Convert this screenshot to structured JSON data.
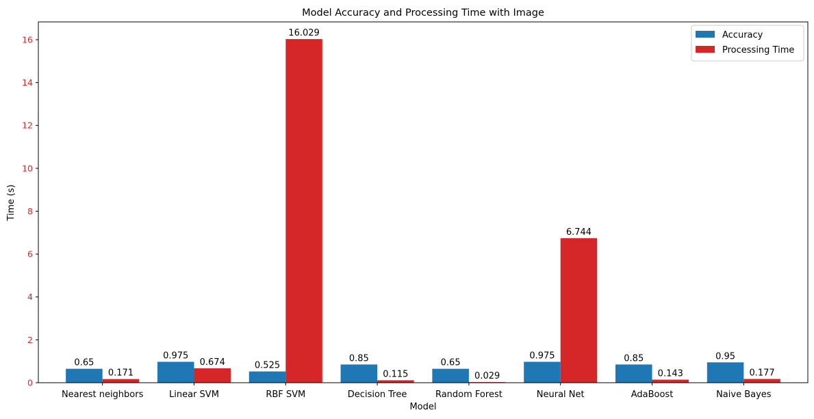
{
  "chart_data": {
    "type": "bar",
    "title": "Model Accuracy and Processing Time with Image",
    "xlabel": "Model",
    "ylabel": "Time (s)",
    "ylim": [
      0,
      16.83
    ],
    "yticks": [
      0,
      2,
      4,
      6,
      8,
      10,
      12,
      14,
      16
    ],
    "grid": false,
    "legend_position": "top-right",
    "categories": [
      "Nearest neighbors",
      "Linear SVM",
      "RBF SVM",
      "Decision Tree",
      "Random Forest",
      "Neural Net",
      "AdaBoost",
      "Naive Bayes"
    ],
    "series": [
      {
        "name": "Accuracy",
        "color": "#1f77b4",
        "values": [
          0.65,
          0.975,
          0.525,
          0.85,
          0.65,
          0.975,
          0.85,
          0.95
        ],
        "labels": [
          "0.65",
          "0.975",
          "0.525",
          "0.85",
          "0.65",
          "0.975",
          "0.85",
          "0.95"
        ]
      },
      {
        "name": "Processing Time",
        "color": "#d62728",
        "values": [
          0.171,
          0.674,
          16.029,
          0.115,
          0.029,
          6.744,
          0.143,
          0.177
        ],
        "labels": [
          "0.171",
          "0.674",
          "16.029",
          "0.115",
          "0.029",
          "6.744",
          "0.143",
          "0.177"
        ]
      }
    ],
    "ylabel_color": "#d62728",
    "ytick_color": "#d62728"
  }
}
